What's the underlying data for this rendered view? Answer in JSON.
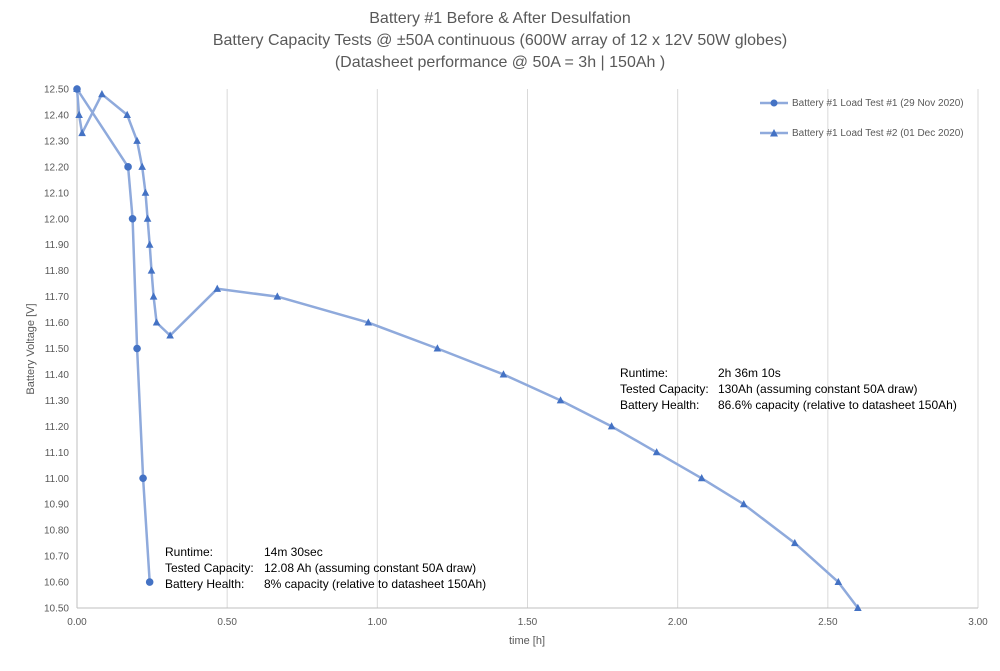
{
  "chart_data": {
    "type": "scatter",
    "title": "Battery #1 Before & After Desulfation",
    "subtitle": "Battery Capacity Tests @ ±50A continuous (600W array of 12 x 12V 50W globes)",
    "subtitle2": "(Datasheet performance @ 50A = 3h | 150Ah )",
    "xlabel": "time [h]",
    "ylabel": "Battery Voltage [V]",
    "xlim": [
      0,
      3
    ],
    "ylim": [
      10.5,
      12.5
    ],
    "xticks": [
      "0.00",
      "0.50",
      "1.00",
      "1.50",
      "2.00",
      "2.50",
      "3.00"
    ],
    "yticks": [
      "10.50",
      "10.60",
      "10.70",
      "10.80",
      "10.90",
      "11.00",
      "11.10",
      "11.20",
      "11.30",
      "11.40",
      "11.50",
      "11.60",
      "11.70",
      "11.80",
      "11.90",
      "12.00",
      "12.10",
      "12.20",
      "12.30",
      "12.40",
      "12.50"
    ],
    "grid": "vertical",
    "legend_position": "top-right",
    "series": [
      {
        "name": "Battery #1 Load Test #1 (29 Nov 2020)",
        "marker": "circle",
        "color": "#4472c4",
        "line_color": "#8faadc",
        "x": [
          0.0,
          0.17,
          0.185,
          0.2,
          0.22,
          0.242
        ],
        "y": [
          12.5,
          12.2,
          12.0,
          11.5,
          11.0,
          10.6
        ]
      },
      {
        "name": "Battery #1 Load Test #2 (01 Dec 2020)",
        "marker": "triangle",
        "color": "#4472c4",
        "line_color": "#8faadc",
        "x": [
          0.0,
          0.007,
          0.017,
          0.083,
          0.167,
          0.2,
          0.217,
          0.228,
          0.235,
          0.242,
          0.248,
          0.255,
          0.265,
          0.31,
          0.467,
          0.667,
          0.97,
          1.2,
          1.42,
          1.61,
          1.78,
          1.93,
          2.08,
          2.22,
          2.39,
          2.535,
          2.6
        ],
        "y": [
          12.5,
          12.4,
          12.33,
          12.48,
          12.4,
          12.3,
          12.2,
          12.1,
          12.0,
          11.9,
          11.8,
          11.7,
          11.6,
          11.55,
          11.73,
          11.7,
          11.6,
          11.5,
          11.4,
          11.3,
          11.2,
          11.1,
          11.0,
          10.9,
          10.75,
          10.6,
          10.5
        ]
      }
    ]
  },
  "annotations": [
    {
      "rows": [
        {
          "key": "Runtime:",
          "value": "2h 36m 10s"
        },
        {
          "key": "Tested Capacity:",
          "value": "130Ah (assuming constant 50A draw)"
        },
        {
          "key": "Battery Health:",
          "value": "86.6% capacity (relative to datasheet 150Ah)"
        }
      ]
    },
    {
      "rows": [
        {
          "key": "Runtime:",
          "value": "14m 30sec"
        },
        {
          "key": "Tested Capacity:",
          "value": "12.08 Ah (assuming constant 50A draw)"
        },
        {
          "key": "Battery Health:",
          "value": "8% capacity (relative to datasheet 150Ah)"
        }
      ]
    }
  ]
}
